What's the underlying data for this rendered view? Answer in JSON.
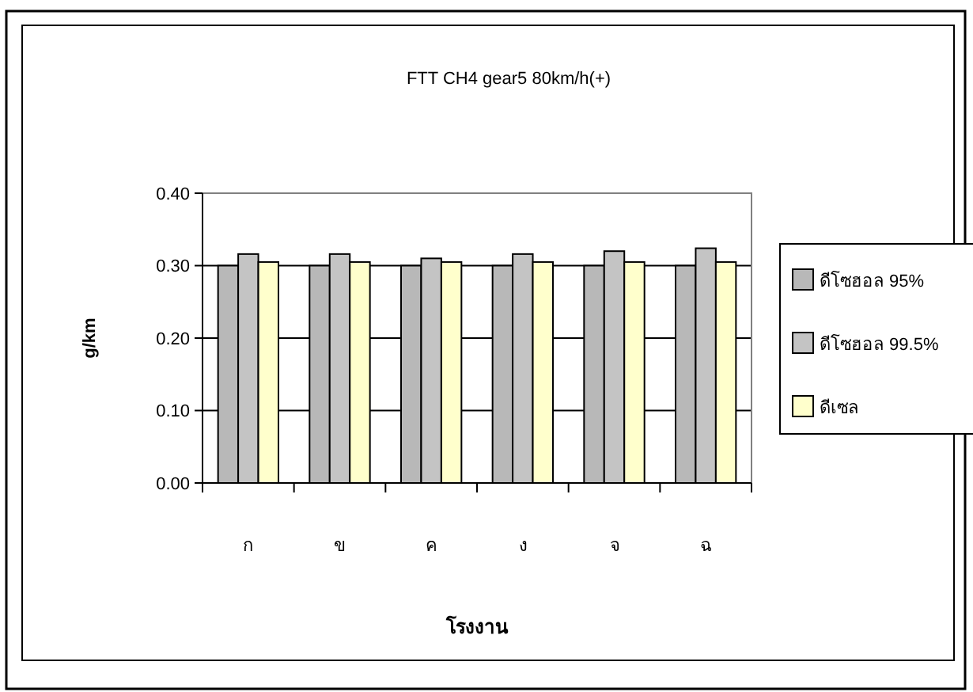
{
  "chart_data": {
    "type": "bar",
    "title": "FTT CH4 gear5 80km/h(+)",
    "xlabel": "โรงงาน",
    "ylabel": "g/km",
    "categories": [
      "ก",
      "ข",
      "ค",
      "ง",
      "จ",
      "ฉ"
    ],
    "series": [
      {
        "name": "ดีโซฮอล 95%",
        "color": "#b8b8b8",
        "values": [
          0.3,
          0.3,
          0.3,
          0.3,
          0.3,
          0.3
        ]
      },
      {
        "name": "ดีโซฮอล 99.5%",
        "color": "#c4c4c4",
        "values": [
          0.316,
          0.316,
          0.31,
          0.316,
          0.32,
          0.324
        ]
      },
      {
        "name": "ดีเซล",
        "color": "#ffffcc",
        "values": [
          0.305,
          0.305,
          0.305,
          0.305,
          0.305,
          0.305
        ]
      }
    ],
    "ylim": [
      0,
      0.4
    ],
    "yticks": [
      {
        "value": 0,
        "label": "0.00"
      },
      {
        "value": 0.1,
        "label": "0.10"
      },
      {
        "value": 0.2,
        "label": "0.20"
      },
      {
        "value": 0.3,
        "label": "0.30"
      },
      {
        "value": 0.4,
        "label": "0.40"
      }
    ],
    "grid": "y",
    "legend": "right"
  }
}
